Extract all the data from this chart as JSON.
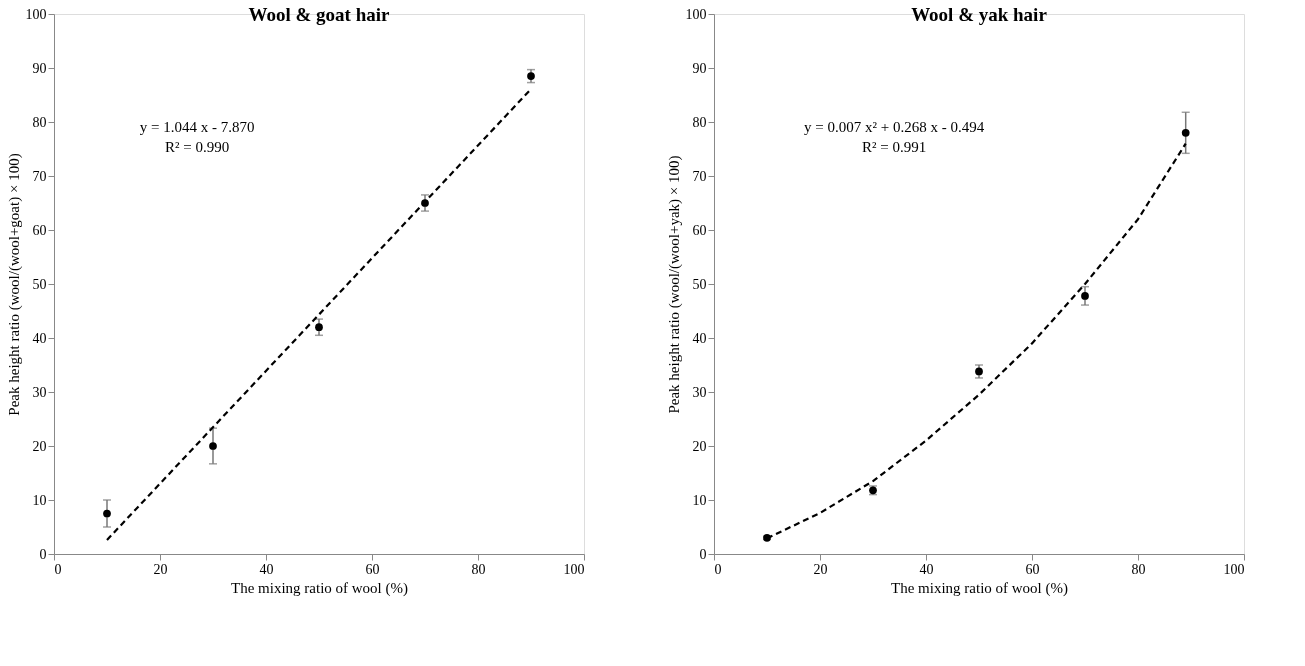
{
  "chart_data": [
    {
      "type": "scatter",
      "title": "Wool & goat hair",
      "xlabel": "The mixing ratio of wool (%)",
      "ylabel": "Peak height ratio (wool/(wool+goat) × 100)",
      "xlim": [
        0,
        100
      ],
      "ylim": [
        0,
        100
      ],
      "xticks": [
        0,
        20,
        40,
        60,
        80,
        100
      ],
      "yticks": [
        0,
        10,
        20,
        30,
        40,
        50,
        60,
        70,
        80,
        90,
        100
      ],
      "grid": false,
      "annotations": [
        "y = 1.044  x - 7.870",
        "R² = 0.990"
      ],
      "series": [
        {
          "marker": "circle",
          "color": "#000000",
          "x": [
            10,
            30,
            50,
            70,
            90
          ],
          "values": [
            7.5,
            20,
            42,
            65,
            88.5
          ],
          "errors": [
            2.5,
            3.3,
            1.5,
            1.5,
            1.2
          ]
        },
        {
          "type": "line",
          "color": "#000000",
          "line_style": "dashed",
          "x": [
            10,
            90
          ],
          "values": [
            2.6,
            86.1
          ]
        }
      ]
    },
    {
      "type": "scatter",
      "title": "Wool & yak hair",
      "xlabel": "The mixing ratio of wool (%)",
      "ylabel": "Peak height ratio (wool/(wool+yak) × 100)",
      "xlim": [
        0,
        100
      ],
      "ylim": [
        0,
        100
      ],
      "xticks": [
        0,
        20,
        40,
        60,
        80,
        100
      ],
      "yticks": [
        0,
        10,
        20,
        30,
        40,
        50,
        60,
        70,
        80,
        90,
        100
      ],
      "grid": false,
      "annotations": [
        "y = 0.007  x² + 0.268  x - 0.494",
        "R² = 0.991"
      ],
      "series": [
        {
          "marker": "circle",
          "color": "#000000",
          "x": [
            10,
            30,
            50,
            70,
            89
          ],
          "values": [
            3,
            11.8,
            33.8,
            47.8,
            78
          ],
          "errors": [
            0.3,
            0.8,
            1.2,
            1.7,
            3.8
          ]
        },
        {
          "type": "line",
          "color": "#000000",
          "line_style": "dashed",
          "x": [
            10,
            20,
            30,
            40,
            50,
            60,
            70,
            80,
            89
          ],
          "values": [
            2.9,
            7.6,
            13.5,
            21,
            29.5,
            39,
            50,
            62,
            76
          ]
        }
      ]
    }
  ]
}
